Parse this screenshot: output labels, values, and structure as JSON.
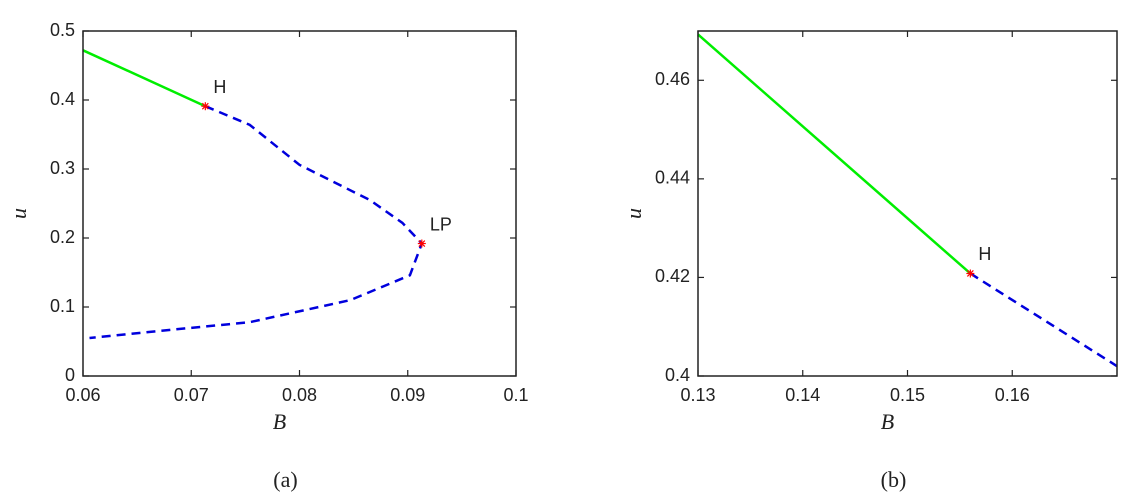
{
  "chart_data": [
    {
      "type": "line",
      "panel_label": "(a)",
      "xlabel": "B",
      "ylabel": "u",
      "xlim": [
        0.06,
        0.1
      ],
      "xticks": [
        0.06,
        0.07,
        0.08,
        0.09,
        0.1
      ],
      "ylim": [
        0,
        0.5
      ],
      "yticks": [
        0,
        0.1,
        0.2,
        0.3,
        0.4,
        0.5
      ],
      "series": [
        {
          "color": "#00ee00",
          "style": "solid",
          "x": [
            0.06,
            0.0713
          ],
          "values": [
            0.472,
            0.391
          ]
        },
        {
          "color": "#0000dd",
          "style": "dashed",
          "x": [
            0.0713,
            0.0754,
            0.08,
            0.0865,
            0.0895,
            0.0913,
            0.0902,
            0.0847,
            0.0754,
            0.0662,
            0.0606
          ],
          "values": [
            0.391,
            0.364,
            0.306,
            0.255,
            0.222,
            0.192,
            0.146,
            0.11,
            0.078,
            0.064,
            0.055
          ]
        }
      ],
      "annotations": [
        {
          "text": "H",
          "x": 0.0713,
          "y": 0.391
        },
        {
          "text": "LP",
          "x": 0.0913,
          "y": 0.192
        }
      ]
    },
    {
      "type": "line",
      "panel_label": "(b)",
      "xlabel": "B",
      "ylabel": "u",
      "xlim": [
        0.13,
        0.17
      ],
      "xticks": [
        0.13,
        0.14,
        0.15,
        0.16
      ],
      "ylim": [
        0.4,
        0.47
      ],
      "yticks": [
        0.4,
        0.42,
        0.44,
        0.46
      ],
      "series": [
        {
          "color": "#00ee00",
          "style": "solid",
          "x": [
            0.13,
            0.156
          ],
          "values": [
            0.4693,
            0.4208
          ]
        },
        {
          "color": "#0000dd",
          "style": "dashed",
          "x": [
            0.156,
            0.17
          ],
          "values": [
            0.4208,
            0.402
          ]
        }
      ],
      "annotations": [
        {
          "text": "H",
          "x": 0.156,
          "y": 0.4208
        }
      ]
    }
  ]
}
